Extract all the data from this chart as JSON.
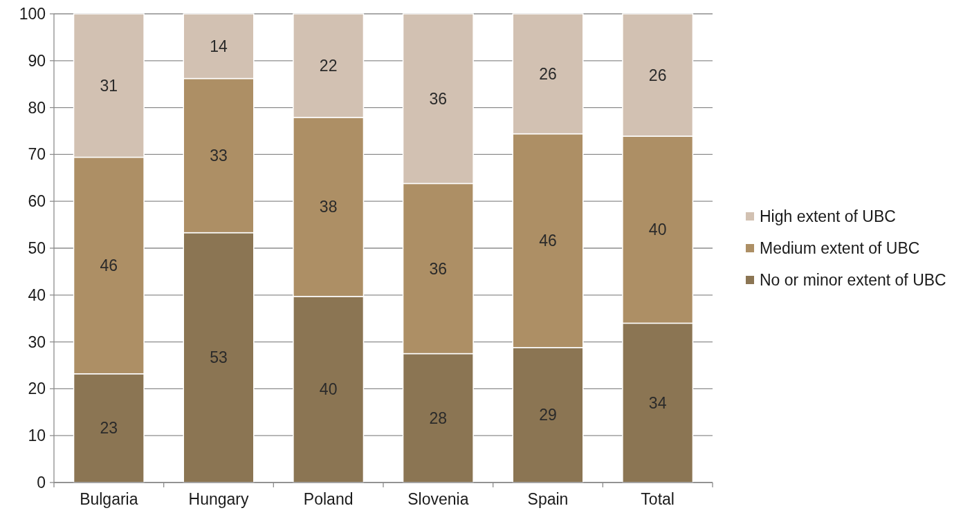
{
  "chart_data": {
    "type": "bar",
    "stacked": true,
    "categories": [
      "Bulgaria",
      "Hungary",
      "Poland",
      "Slovenia",
      "Spain",
      "Total"
    ],
    "series": [
      {
        "name": "No or minor extent of UBC",
        "color": "#8b7553",
        "values": [
          23.2,
          53.3,
          39.7,
          27.5,
          28.8,
          34.0
        ],
        "value_labels": [
          "23",
          "53",
          "40",
          "28",
          "29",
          "34"
        ]
      },
      {
        "name": "Medium extent of UBC",
        "color": "#ad8f65",
        "values": [
          46.2,
          32.9,
          38.2,
          36.3,
          45.6,
          39.9
        ],
        "value_labels": [
          "46",
          "33",
          "38",
          "36",
          "46",
          "40"
        ]
      },
      {
        "name": "High extent of UBC",
        "color": "#d2c1b2",
        "values": [
          30.6,
          13.8,
          22.1,
          36.2,
          25.6,
          26.1
        ],
        "value_labels": [
          "31",
          "14",
          "22",
          "36",
          "26",
          "26"
        ]
      }
    ],
    "ylim": [
      0,
      100
    ],
    "yticks": [
      0,
      10,
      20,
      30,
      40,
      50,
      60,
      70,
      80,
      90,
      100
    ],
    "grid": "y",
    "legend": "right"
  }
}
